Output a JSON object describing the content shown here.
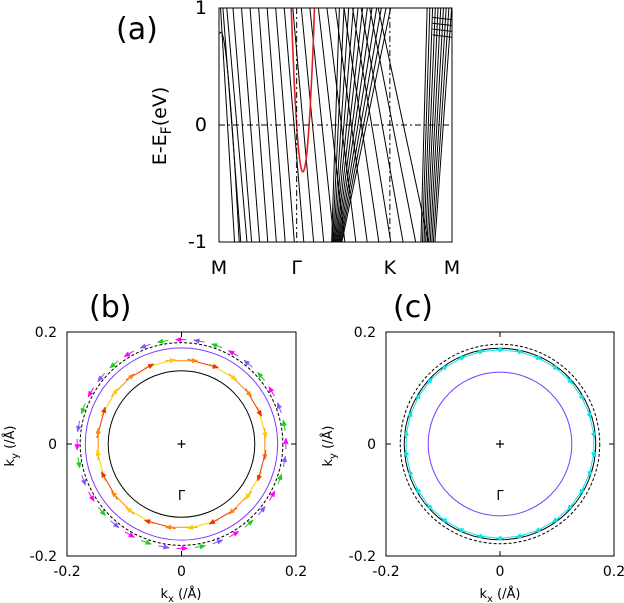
{
  "chart_data": [
    {
      "panel": "(a)",
      "type": "line",
      "ylabel": {
        "base": "E-E",
        "sub": "F",
        "unit": "(eV)"
      },
      "ylim": [
        -1,
        1
      ],
      "yticks": [
        "-1",
        "0",
        "1"
      ],
      "xticks": [
        "M",
        "Γ",
        "K",
        "M"
      ],
      "xtick_positions": [
        0,
        1,
        2.2,
        3
      ],
      "highlight_band": {
        "color": "#e02020",
        "k_left": 0.93,
        "k_right": 1.23,
        "min_energy": -0.4
      },
      "band_color": "#000000"
    },
    {
      "panel": "(b)",
      "type": "scatter",
      "xlabel": {
        "base": "k",
        "sub": "x",
        "unit": " (/Å)"
      },
      "ylabel": {
        "base": "k",
        "sub": "y",
        "unit": " (/Å)"
      },
      "xlim": [
        -0.2,
        0.2
      ],
      "ylim": [
        -0.2,
        0.2
      ],
      "xticks": [
        "-0.2",
        "0",
        "0.2"
      ],
      "yticks": [
        "-0.2",
        "0",
        "0.2"
      ],
      "center_label": "Γ",
      "contours": [
        0.128,
        0.168,
        0.177
      ],
      "arrow_colors_outer": [
        "#ff00ff",
        "#22cc22",
        "#8855ff"
      ],
      "arrow_colors_inner": [
        "#ff8800",
        "#ffcc00",
        "#ee3300"
      ]
    },
    {
      "panel": "(c)",
      "type": "scatter",
      "xlabel": {
        "base": "k",
        "sub": "x",
        "unit": " (/Å)"
      },
      "ylabel": {
        "base": "k",
        "sub": "y",
        "unit": " (/Å)"
      },
      "xlim": [
        -0.2,
        0.2
      ],
      "ylim": [
        -0.2,
        0.2
      ],
      "xticks": [
        "-0.2",
        "0",
        "0.2"
      ],
      "yticks": [
        "-0.2",
        "0",
        "0.2"
      ],
      "center_label": "Γ",
      "contours": [
        0.126,
        0.168,
        0.175
      ],
      "arrow_colors_outer": [
        "#00e5ee",
        "#22dddd"
      ],
      "arrow_colors_inner": [
        "#7a5cff"
      ]
    }
  ]
}
